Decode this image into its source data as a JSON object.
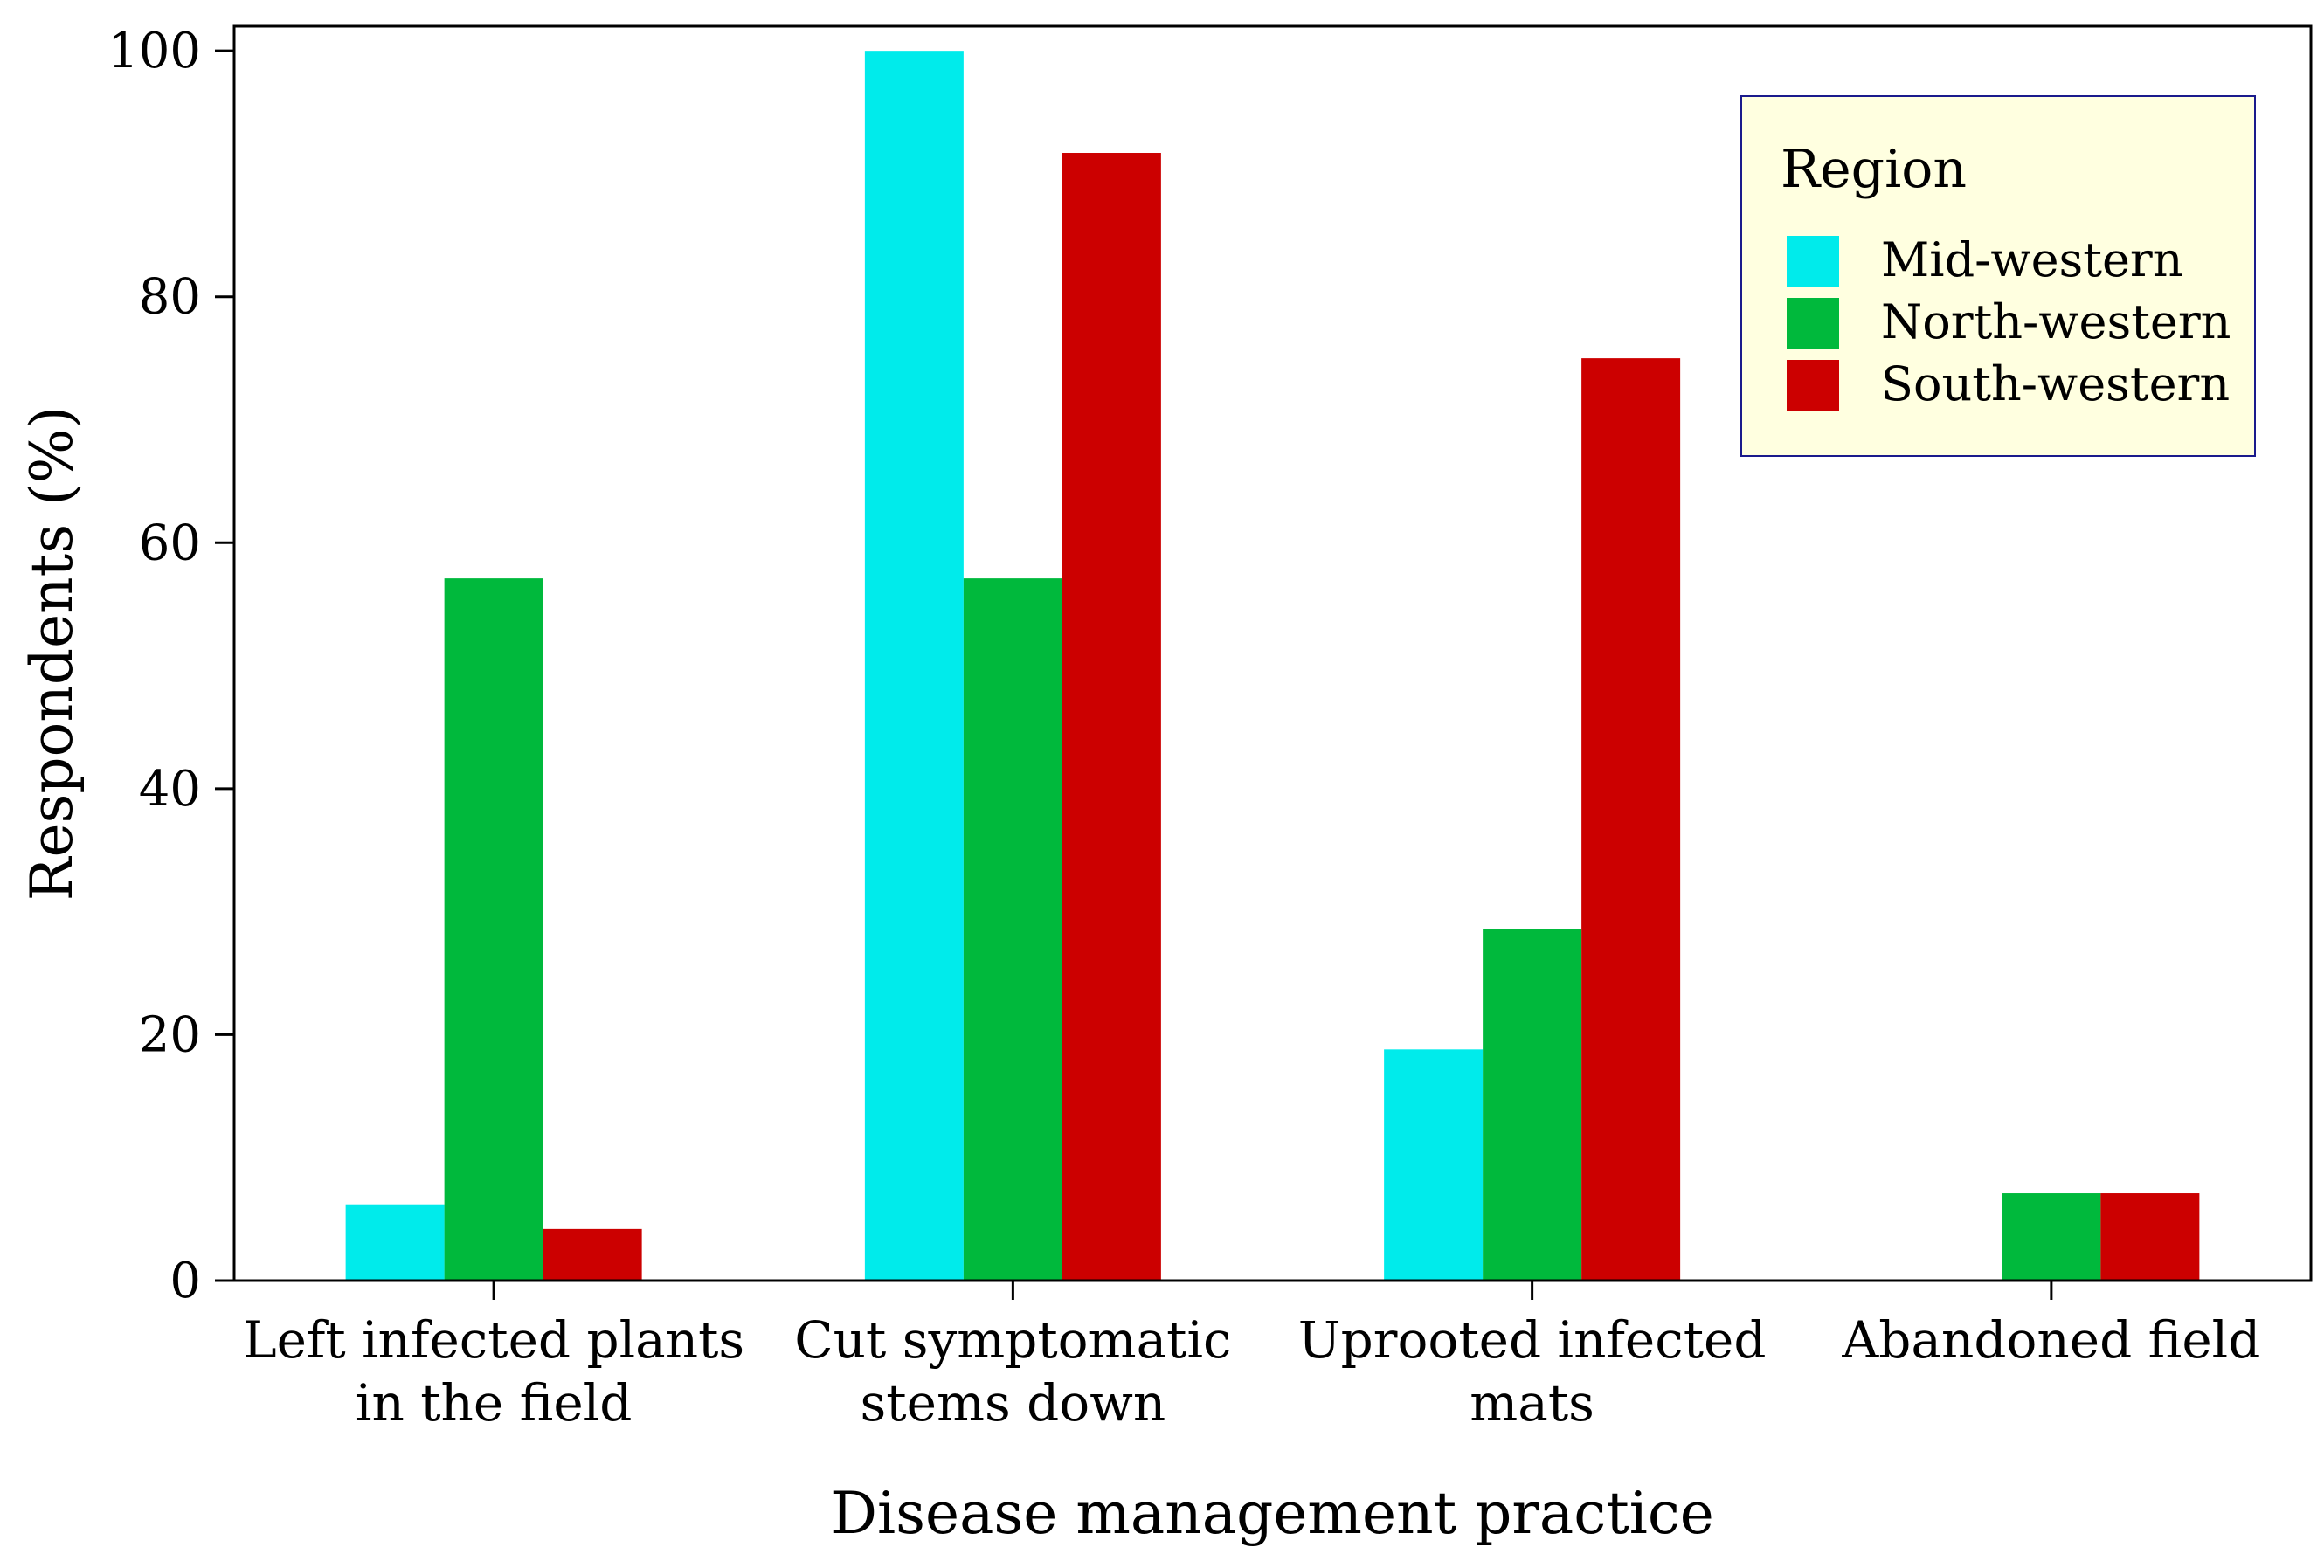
{
  "chart_data": {
    "type": "bar",
    "categories": [
      [
        "Left infected plants",
        "in the field"
      ],
      [
        "Cut symptomatic",
        "stems down"
      ],
      [
        "Uprooted infected",
        "mats"
      ],
      [
        "Abandoned field"
      ]
    ],
    "series": [
      {
        "name": "Mid-western",
        "color": "#00EBEB",
        "values": [
          6.2,
          100,
          18.8,
          0
        ]
      },
      {
        "name": "North-western",
        "color": "#00B93C",
        "values": [
          57.1,
          57.1,
          28.6,
          7.1
        ]
      },
      {
        "name": "South-western",
        "color": "#CC0000",
        "values": [
          4.2,
          91.7,
          75,
          7.1
        ]
      }
    ],
    "xlabel": "Disease management practice",
    "ylabel": "Respondents (%)",
    "ylim": [
      0,
      102
    ],
    "yticks": [
      0,
      20,
      40,
      60,
      80,
      100
    ],
    "grid": false,
    "legend": {
      "title": "Region",
      "placement": "top-right",
      "background": "#FFFFE0",
      "border": "#1A1A8C"
    }
  }
}
